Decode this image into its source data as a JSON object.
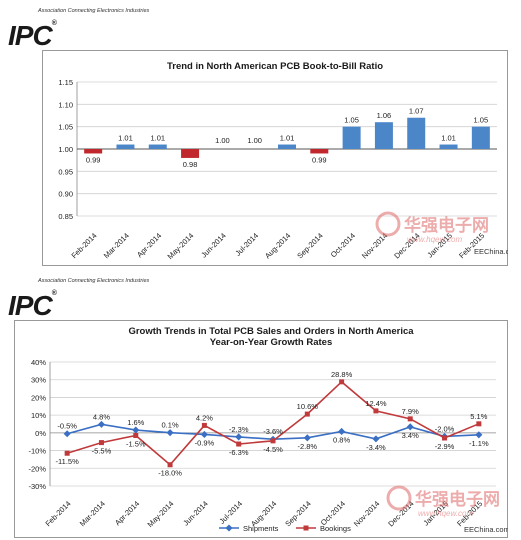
{
  "header_top": {
    "association": "Association Connecting Electronics Industries",
    "logo_text": "IPC",
    "logo_mark": "®"
  },
  "header_bottom": {
    "association": "Association Connecting Electronics Industries",
    "logo_text": "IPC",
    "logo_mark": "®"
  },
  "watermark": {
    "brand_cn": "华强电子网",
    "url": "www.hqew.com",
    "credit": "EEChina.com"
  },
  "chart_data": [
    {
      "type": "bar",
      "title": "Trend in North American PCB Book-to-Bill Ratio",
      "categories": [
        "Feb-2014",
        "Mar-2014",
        "Apr-2014",
        "May-2014",
        "Jun-2014",
        "Jul-2014",
        "Aug-2014",
        "Sep-2014",
        "Oct-2014",
        "Nov-2014",
        "Dec-2014",
        "Jan-2015",
        "Feb-2015"
      ],
      "values": [
        0.99,
        1.01,
        1.01,
        0.98,
        1.0,
        1.0,
        1.01,
        0.99,
        1.05,
        1.06,
        1.07,
        1.01,
        1.05
      ],
      "data_labels": [
        "0.99",
        "1.01",
        "1.01",
        "0.98",
        "1.00",
        "1.00",
        "1.01",
        "0.99",
        "1.05",
        "1.06",
        "1.07",
        "1.01",
        "1.05"
      ],
      "baseline": 1.0,
      "ylim": [
        0.85,
        1.15
      ],
      "yticks": [
        "1.15",
        "1.10",
        "1.05",
        "1.00",
        "0.95",
        "0.90",
        "0.85"
      ],
      "colors": {
        "above": "#4a86c8",
        "below": "#c0282e"
      },
      "grid": true
    },
    {
      "type": "line",
      "title": "Growth Trends in Total PCB Sales and Orders in North America",
      "subtitle": "Year-on-Year Growth Rates",
      "categories": [
        "Feb-2014",
        "Mar-2014",
        "Apr-2014",
        "May-2014",
        "Jun-2014",
        "Jul-2014",
        "Aug-2014",
        "Sep-2014",
        "Oct-2014",
        "Nov-2014",
        "Dec-2014",
        "Jan-2015",
        "Feb-2015"
      ],
      "series": [
        {
          "name": "Shipments",
          "color": "#3a6fc4",
          "values": [
            -0.5,
            4.8,
            1.6,
            0.1,
            -0.9,
            -2.3,
            -3.6,
            -2.8,
            0.8,
            -3.4,
            3.4,
            -2.0,
            -1.1
          ],
          "labels": [
            "-0.5%",
            "4.8%",
            "1.6%",
            "0.1%",
            "-0.9%",
            "-2.3%",
            "-3.6%",
            "-2.8%",
            "0.8%",
            "-3.4%",
            "3.4%",
            "-2.0%",
            "-1.1%"
          ]
        },
        {
          "name": "Bookings",
          "color": "#c0393b",
          "values": [
            -11.5,
            -5.5,
            -1.5,
            -18.0,
            4.2,
            -6.3,
            -4.5,
            10.6,
            28.8,
            12.4,
            7.9,
            -2.9,
            5.1
          ],
          "labels": [
            "-11.5%",
            "-5.5%",
            "-1.5%",
            "-18.0%",
            "4.2%",
            "-6.3%",
            "-4.5%",
            "10.6%",
            "28.8%",
            "12.4%",
            "7.9%",
            "-2.9%",
            "5.1%"
          ]
        }
      ],
      "ylim": [
        -30,
        40
      ],
      "yticks": [
        "40%",
        "30%",
        "20%",
        "10%",
        "0%",
        "-10%",
        "-20%",
        "-30%"
      ],
      "legend_position": "bottom",
      "grid": true
    }
  ]
}
